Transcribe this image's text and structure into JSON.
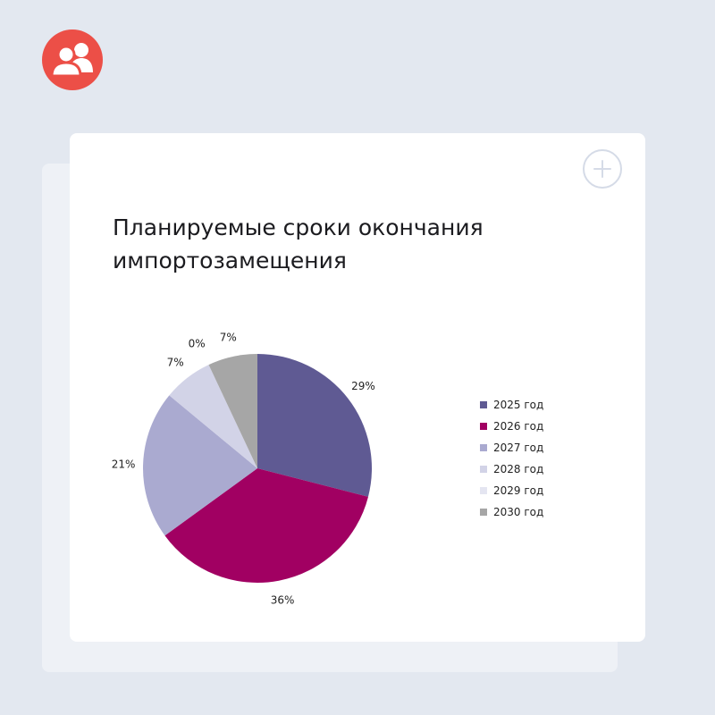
{
  "brand": {
    "logo_icon": "users-icon",
    "color": "#ec4f47"
  },
  "card": {
    "action_icon": "plus-icon"
  },
  "chart_data": {
    "type": "pie",
    "title": "Планируемые сроки окончания импортозамещения",
    "categories": [
      "2025 год",
      "2026 год",
      "2027 год",
      "2028 год",
      "2029 год",
      "2030 год"
    ],
    "values": [
      29,
      36,
      21,
      7,
      0,
      7
    ],
    "labels": [
      "29%",
      "36%",
      "21%",
      "7%",
      "0%",
      "7%"
    ],
    "colors": [
      "#5f5a93",
      "#a10062",
      "#aaaad0",
      "#d2d3e7",
      "#e4e5f1",
      "#a6a6a6"
    ],
    "legend_position": "right"
  }
}
